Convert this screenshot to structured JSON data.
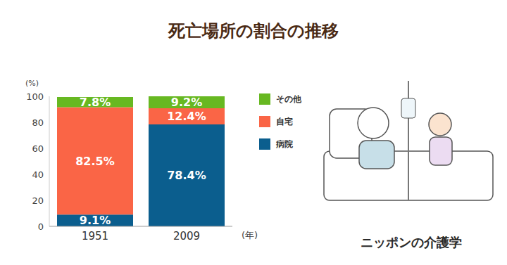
{
  "chart_data": {
    "type": "bar",
    "title": "死亡場所の割合の推移",
    "categories": [
      "1951",
      "2009"
    ],
    "series": [
      {
        "name": "病院",
        "color": "#0b5e8e",
        "values": [
          9.1,
          78.4
        ],
        "value_labels": [
          "9.1%",
          "78.4%"
        ]
      },
      {
        "name": "自宅",
        "color": "#fa6546",
        "values": [
          82.5,
          12.4
        ],
        "value_labels": [
          "82.5%",
          "12.4%"
        ]
      },
      {
        "name": "その他",
        "color": "#67b821",
        "values": [
          7.8,
          9.2
        ],
        "value_labels": [
          "7.8%",
          "9.2%"
        ]
      }
    ],
    "y_label": "(%)",
    "x_label": "(年)",
    "ylim": [
      0,
      100
    ],
    "yticks": [
      0,
      20,
      40,
      60,
      80,
      100
    ],
    "stacked": true,
    "data_labels": true,
    "grid": false,
    "legend": "right",
    "annotations": [
      "ニッポンの介護学"
    ]
  }
}
